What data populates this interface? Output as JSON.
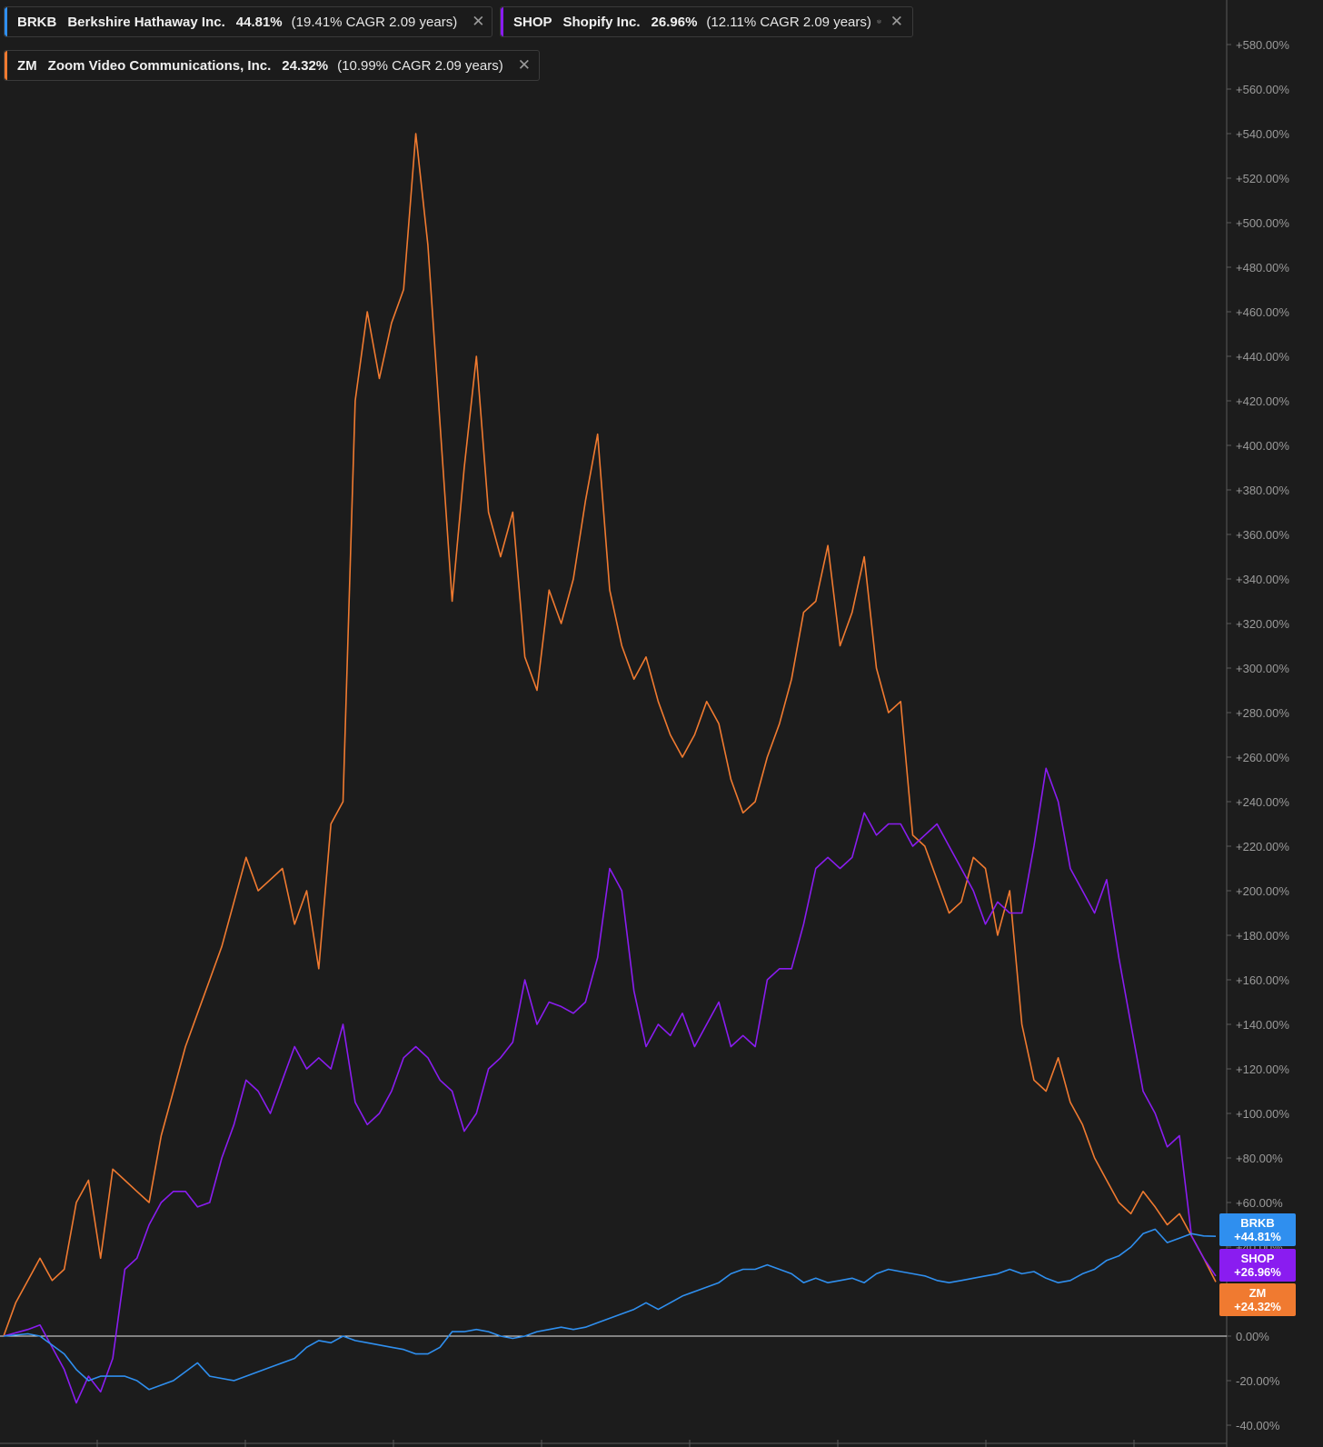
{
  "legend": [
    {
      "symbol": "BRKB",
      "name": "Berkshire Hathaway Inc.",
      "return": "44.81%",
      "cagr": "(19.41% CAGR 2.09 years)",
      "color": "#2f8fef"
    },
    {
      "symbol": "SHOP",
      "name": "Shopify Inc.",
      "return": "26.96%",
      "cagr": "(12.11% CAGR 2.09 years)",
      "color": "#8a1cf0"
    },
    {
      "symbol": "ZM",
      "name": "Zoom Video Communications, Inc.",
      "return": "24.32%",
      "cagr": "(10.99% CAGR 2.09 years)",
      "color": "#f07a30"
    }
  ],
  "end_labels": [
    {
      "symbol": "BRKB",
      "value": "+44.81%",
      "color": "#2f8fef"
    },
    {
      "symbol": "SHOP",
      "value": "+26.96%",
      "color": "#8a1cf0"
    },
    {
      "symbol": "ZM",
      "value": "+24.32%",
      "color": "#f07a30"
    }
  ],
  "icons": {
    "stack": "stack-icon",
    "close": "close-icon"
  },
  "chart_data": {
    "type": "line",
    "ylim": [
      -40,
      590
    ],
    "y_ticks": [
      "+580.00%",
      "+560.00%",
      "+540.00%",
      "+520.00%",
      "+500.00%",
      "+480.00%",
      "+460.00%",
      "+440.00%",
      "+420.00%",
      "+400.00%",
      "+380.00%",
      "+360.00%",
      "+340.00%",
      "+320.00%",
      "+300.00%",
      "+280.00%",
      "+260.00%",
      "+240.00%",
      "+220.00%",
      "+200.00%",
      "+180.00%",
      "+160.00%",
      "+140.00%",
      "+120.00%",
      "+100.00%",
      "+80.00%",
      "+60.00%",
      "+40.00%",
      "+20.00%",
      "0.00%",
      "-20.00%",
      "-40.00%"
    ],
    "y_tick_values": [
      580,
      560,
      540,
      520,
      500,
      480,
      460,
      440,
      420,
      400,
      380,
      360,
      340,
      320,
      300,
      280,
      260,
      240,
      220,
      200,
      180,
      160,
      140,
      120,
      100,
      80,
      60,
      40,
      20,
      0,
      -20,
      -40
    ],
    "x_index_max": 100,
    "baseline": 0,
    "series": [
      {
        "name": "BRKB",
        "color": "#2f8fef",
        "points": [
          [
            0,
            0
          ],
          [
            2,
            1
          ],
          [
            3,
            0
          ],
          [
            5,
            -8
          ],
          [
            6,
            -15
          ],
          [
            7,
            -20
          ],
          [
            8,
            -18
          ],
          [
            10,
            -18
          ],
          [
            11,
            -20
          ],
          [
            12,
            -24
          ],
          [
            13,
            -22
          ],
          [
            14,
            -20
          ],
          [
            16,
            -12
          ],
          [
            17,
            -18
          ],
          [
            19,
            -20
          ],
          [
            20,
            -18
          ],
          [
            22,
            -14
          ],
          [
            24,
            -10
          ],
          [
            25,
            -5
          ],
          [
            26,
            -2
          ],
          [
            27,
            -3
          ],
          [
            28,
            0
          ],
          [
            29,
            -2
          ],
          [
            30,
            -3
          ],
          [
            32,
            -5
          ],
          [
            33,
            -6
          ],
          [
            34,
            -8
          ],
          [
            35,
            -8
          ],
          [
            36,
            -5
          ],
          [
            37,
            2
          ],
          [
            38,
            2
          ],
          [
            39,
            3
          ],
          [
            40,
            2
          ],
          [
            41,
            0
          ],
          [
            42,
            -1
          ],
          [
            43,
            0
          ],
          [
            44,
            2
          ],
          [
            45,
            3
          ],
          [
            46,
            4
          ],
          [
            47,
            3
          ],
          [
            48,
            4
          ],
          [
            49,
            6
          ],
          [
            50,
            8
          ],
          [
            51,
            10
          ],
          [
            52,
            12
          ],
          [
            53,
            15
          ],
          [
            54,
            12
          ],
          [
            55,
            15
          ],
          [
            56,
            18
          ],
          [
            57,
            20
          ],
          [
            58,
            22
          ],
          [
            59,
            24
          ],
          [
            60,
            28
          ],
          [
            61,
            30
          ],
          [
            62,
            30
          ],
          [
            63,
            32
          ],
          [
            64,
            30
          ],
          [
            65,
            28
          ],
          [
            66,
            24
          ],
          [
            67,
            26
          ],
          [
            68,
            24
          ],
          [
            69,
            25
          ],
          [
            70,
            26
          ],
          [
            71,
            24
          ],
          [
            72,
            28
          ],
          [
            73,
            30
          ],
          [
            74,
            29
          ],
          [
            75,
            28
          ],
          [
            76,
            27
          ],
          [
            77,
            25
          ],
          [
            78,
            24
          ],
          [
            79,
            25
          ],
          [
            80,
            26
          ],
          [
            81,
            27
          ],
          [
            82,
            28
          ],
          [
            83,
            30
          ],
          [
            84,
            28
          ],
          [
            85,
            29
          ],
          [
            86,
            26
          ],
          [
            87,
            24
          ],
          [
            88,
            25
          ],
          [
            89,
            28
          ],
          [
            90,
            30
          ],
          [
            91,
            34
          ],
          [
            92,
            36
          ],
          [
            93,
            40
          ],
          [
            94,
            46
          ],
          [
            95,
            48
          ],
          [
            96,
            42
          ],
          [
            97,
            44
          ],
          [
            98,
            46
          ],
          [
            99,
            45
          ],
          [
            100,
            44.81
          ]
        ]
      },
      {
        "name": "SHOP",
        "color": "#8a1cf0",
        "points": [
          [
            0,
            0
          ],
          [
            2,
            3
          ],
          [
            3,
            5
          ],
          [
            4,
            -5
          ],
          [
            5,
            -15
          ],
          [
            6,
            -30
          ],
          [
            7,
            -18
          ],
          [
            8,
            -25
          ],
          [
            9,
            -10
          ],
          [
            10,
            30
          ],
          [
            11,
            35
          ],
          [
            12,
            50
          ],
          [
            13,
            60
          ],
          [
            14,
            65
          ],
          [
            15,
            65
          ],
          [
            16,
            58
          ],
          [
            17,
            60
          ],
          [
            18,
            80
          ],
          [
            19,
            95
          ],
          [
            20,
            115
          ],
          [
            21,
            110
          ],
          [
            22,
            100
          ],
          [
            23,
            115
          ],
          [
            24,
            130
          ],
          [
            25,
            120
          ],
          [
            26,
            125
          ],
          [
            27,
            120
          ],
          [
            28,
            140
          ],
          [
            29,
            105
          ],
          [
            30,
            95
          ],
          [
            31,
            100
          ],
          [
            32,
            110
          ],
          [
            33,
            125
          ],
          [
            34,
            130
          ],
          [
            35,
            125
          ],
          [
            36,
            115
          ],
          [
            37,
            110
          ],
          [
            38,
            92
          ],
          [
            39,
            100
          ],
          [
            40,
            120
          ],
          [
            41,
            125
          ],
          [
            42,
            132
          ],
          [
            43,
            160
          ],
          [
            44,
            140
          ],
          [
            45,
            150
          ],
          [
            46,
            148
          ],
          [
            47,
            145
          ],
          [
            48,
            150
          ],
          [
            49,
            170
          ],
          [
            50,
            210
          ],
          [
            51,
            200
          ],
          [
            52,
            155
          ],
          [
            53,
            130
          ],
          [
            54,
            140
          ],
          [
            55,
            135
          ],
          [
            56,
            145
          ],
          [
            57,
            130
          ],
          [
            58,
            140
          ],
          [
            59,
            150
          ],
          [
            60,
            130
          ],
          [
            61,
            135
          ],
          [
            62,
            130
          ],
          [
            63,
            160
          ],
          [
            64,
            165
          ],
          [
            65,
            165
          ],
          [
            66,
            185
          ],
          [
            67,
            210
          ],
          [
            68,
            215
          ],
          [
            69,
            210
          ],
          [
            70,
            215
          ],
          [
            71,
            235
          ],
          [
            72,
            225
          ],
          [
            73,
            230
          ],
          [
            74,
            230
          ],
          [
            75,
            220
          ],
          [
            76,
            225
          ],
          [
            77,
            230
          ],
          [
            78,
            220
          ],
          [
            79,
            210
          ],
          [
            80,
            200
          ],
          [
            81,
            185
          ],
          [
            82,
            195
          ],
          [
            83,
            190
          ],
          [
            84,
            190
          ],
          [
            85,
            220
          ],
          [
            86,
            255
          ],
          [
            87,
            240
          ],
          [
            88,
            210
          ],
          [
            89,
            200
          ],
          [
            90,
            190
          ],
          [
            91,
            205
          ],
          [
            92,
            170
          ],
          [
            93,
            140
          ],
          [
            94,
            110
          ],
          [
            95,
            100
          ],
          [
            96,
            85
          ],
          [
            97,
            90
          ],
          [
            98,
            45
          ],
          [
            99,
            35
          ],
          [
            100,
            26.96
          ]
        ]
      },
      {
        "name": "ZM",
        "color": "#f07a30",
        "points": [
          [
            0,
            0
          ],
          [
            1,
            15
          ],
          [
            2,
            25
          ],
          [
            3,
            35
          ],
          [
            4,
            25
          ],
          [
            5,
            30
          ],
          [
            6,
            60
          ],
          [
            7,
            70
          ],
          [
            8,
            35
          ],
          [
            9,
            75
          ],
          [
            10,
            70
          ],
          [
            11,
            65
          ],
          [
            12,
            60
          ],
          [
            13,
            90
          ],
          [
            14,
            110
          ],
          [
            15,
            130
          ],
          [
            16,
            145
          ],
          [
            17,
            160
          ],
          [
            18,
            175
          ],
          [
            19,
            195
          ],
          [
            20,
            215
          ],
          [
            21,
            200
          ],
          [
            22,
            205
          ],
          [
            23,
            210
          ],
          [
            24,
            185
          ],
          [
            25,
            200
          ],
          [
            26,
            165
          ],
          [
            27,
            230
          ],
          [
            28,
            240
          ],
          [
            29,
            420
          ],
          [
            30,
            460
          ],
          [
            31,
            430
          ],
          [
            32,
            455
          ],
          [
            33,
            470
          ],
          [
            34,
            540
          ],
          [
            35,
            490
          ],
          [
            36,
            410
          ],
          [
            37,
            330
          ],
          [
            38,
            390
          ],
          [
            39,
            440
          ],
          [
            40,
            370
          ],
          [
            41,
            350
          ],
          [
            42,
            370
          ],
          [
            43,
            305
          ],
          [
            44,
            290
          ],
          [
            45,
            335
          ],
          [
            46,
            320
          ],
          [
            47,
            340
          ],
          [
            48,
            375
          ],
          [
            49,
            405
          ],
          [
            50,
            335
          ],
          [
            51,
            310
          ],
          [
            52,
            295
          ],
          [
            53,
            305
          ],
          [
            54,
            285
          ],
          [
            55,
            270
          ],
          [
            56,
            260
          ],
          [
            57,
            270
          ],
          [
            58,
            285
          ],
          [
            59,
            275
          ],
          [
            60,
            250
          ],
          [
            61,
            235
          ],
          [
            62,
            240
          ],
          [
            63,
            260
          ],
          [
            64,
            275
          ],
          [
            65,
            295
          ],
          [
            66,
            325
          ],
          [
            67,
            330
          ],
          [
            68,
            355
          ],
          [
            69,
            310
          ],
          [
            70,
            325
          ],
          [
            71,
            350
          ],
          [
            72,
            300
          ],
          [
            73,
            280
          ],
          [
            74,
            285
          ],
          [
            75,
            225
          ],
          [
            76,
            220
          ],
          [
            77,
            205
          ],
          [
            78,
            190
          ],
          [
            79,
            195
          ],
          [
            80,
            215
          ],
          [
            81,
            210
          ],
          [
            82,
            180
          ],
          [
            83,
            200
          ],
          [
            84,
            140
          ],
          [
            85,
            115
          ],
          [
            86,
            110
          ],
          [
            87,
            125
          ],
          [
            88,
            105
          ],
          [
            89,
            95
          ],
          [
            90,
            80
          ],
          [
            91,
            70
          ],
          [
            92,
            60
          ],
          [
            93,
            55
          ],
          [
            94,
            65
          ],
          [
            95,
            58
          ],
          [
            96,
            50
          ],
          [
            97,
            55
          ],
          [
            98,
            45
          ],
          [
            99,
            35
          ],
          [
            100,
            24.32
          ]
        ]
      }
    ]
  }
}
